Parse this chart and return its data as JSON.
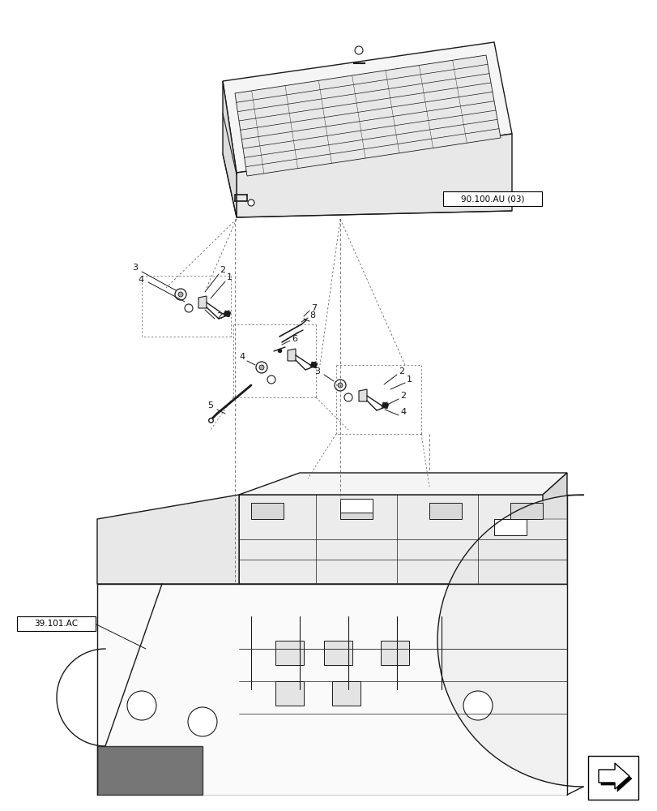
{
  "background_color": "#ffffff",
  "line_color": "#1a1a1a",
  "dashed_color": "#555555",
  "ref1_text": "90.100.AU (03)",
  "ref2_text": "39.101.AC",
  "fig_width": 8.12,
  "fig_height": 10.0,
  "dpi": 100,
  "hood_color": "#f2f2f2",
  "hood_shade": "#e0e0e0",
  "body_color": "#eeeeee",
  "body_shade": "#d8d8d8"
}
